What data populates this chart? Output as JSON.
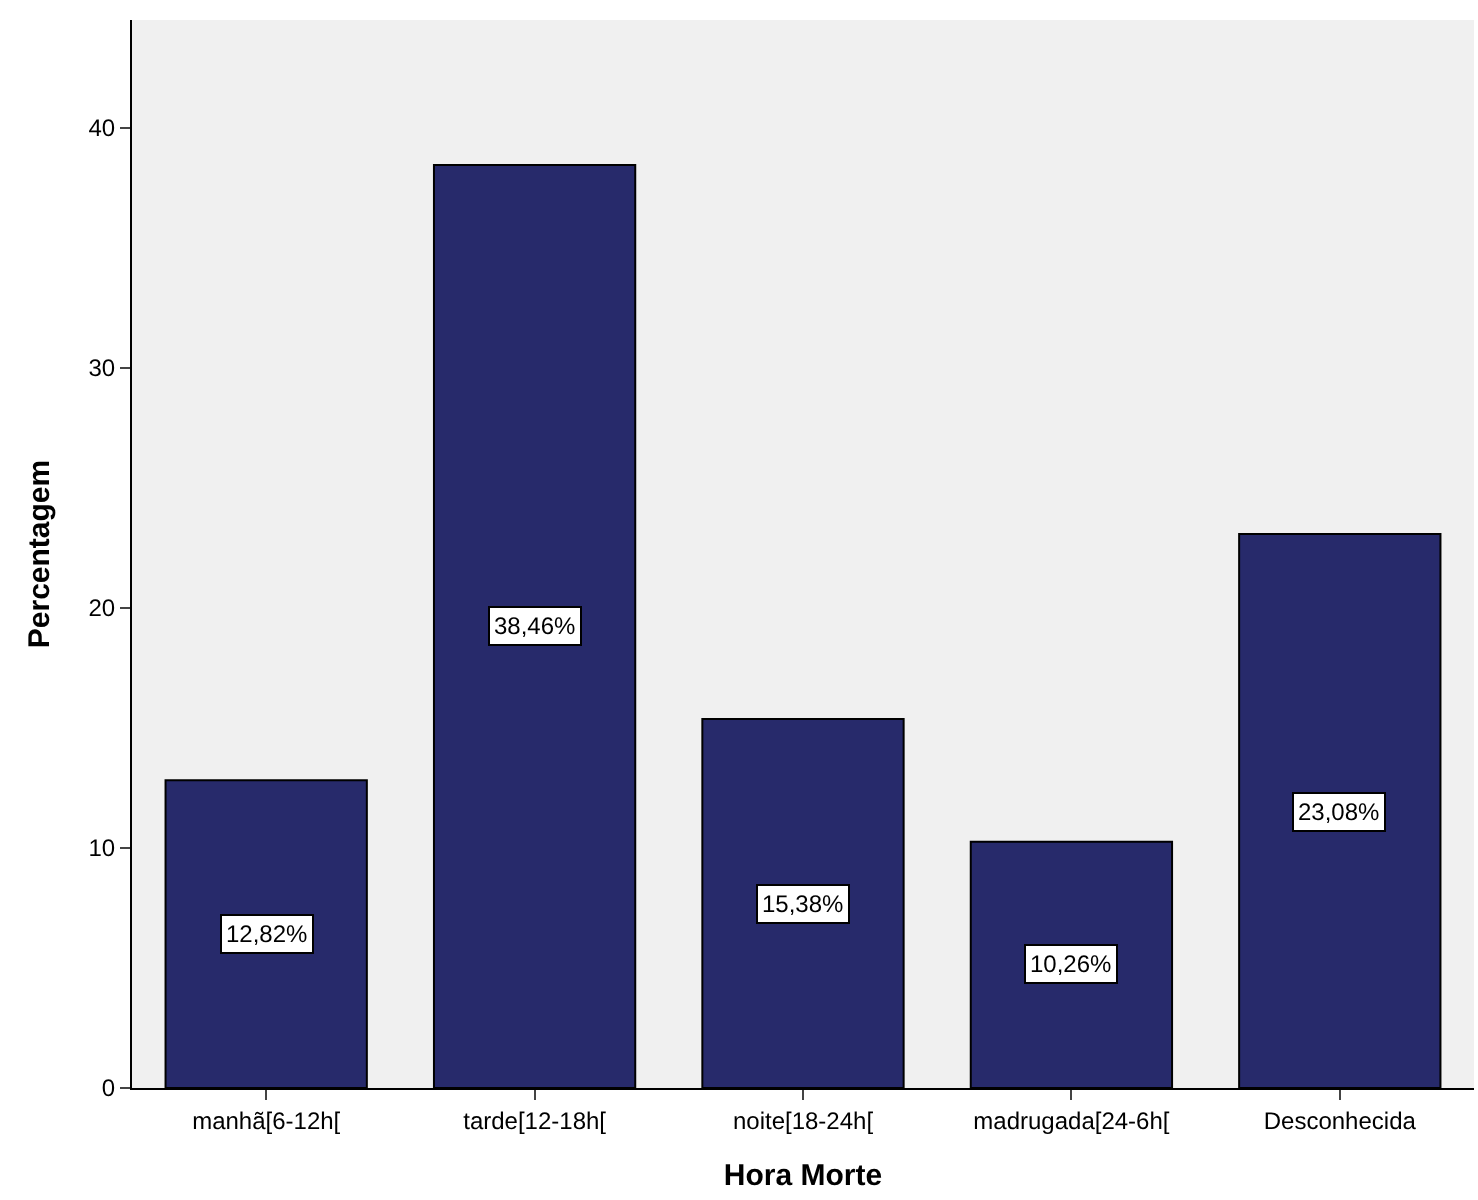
{
  "chart_data": {
    "type": "bar",
    "xlabel": "Hora Morte",
    "ylabel": "Percentagem",
    "categories": [
      "manhã[6-12h[",
      "tarde[12-18h[",
      "noite[18-24h[",
      "madrugada[24-6h[",
      "Desconhecida"
    ],
    "values": [
      12.82,
      38.46,
      15.38,
      10.26,
      23.08
    ],
    "value_labels": [
      "12,82%",
      "38,46%",
      "15,38%",
      "10,26%",
      "23,08%"
    ],
    "color": "#272a6b",
    "ylim": [
      0,
      44.5
    ],
    "yticks": [
      0,
      10,
      20,
      30,
      40
    ],
    "grid": false,
    "legend": false
  }
}
